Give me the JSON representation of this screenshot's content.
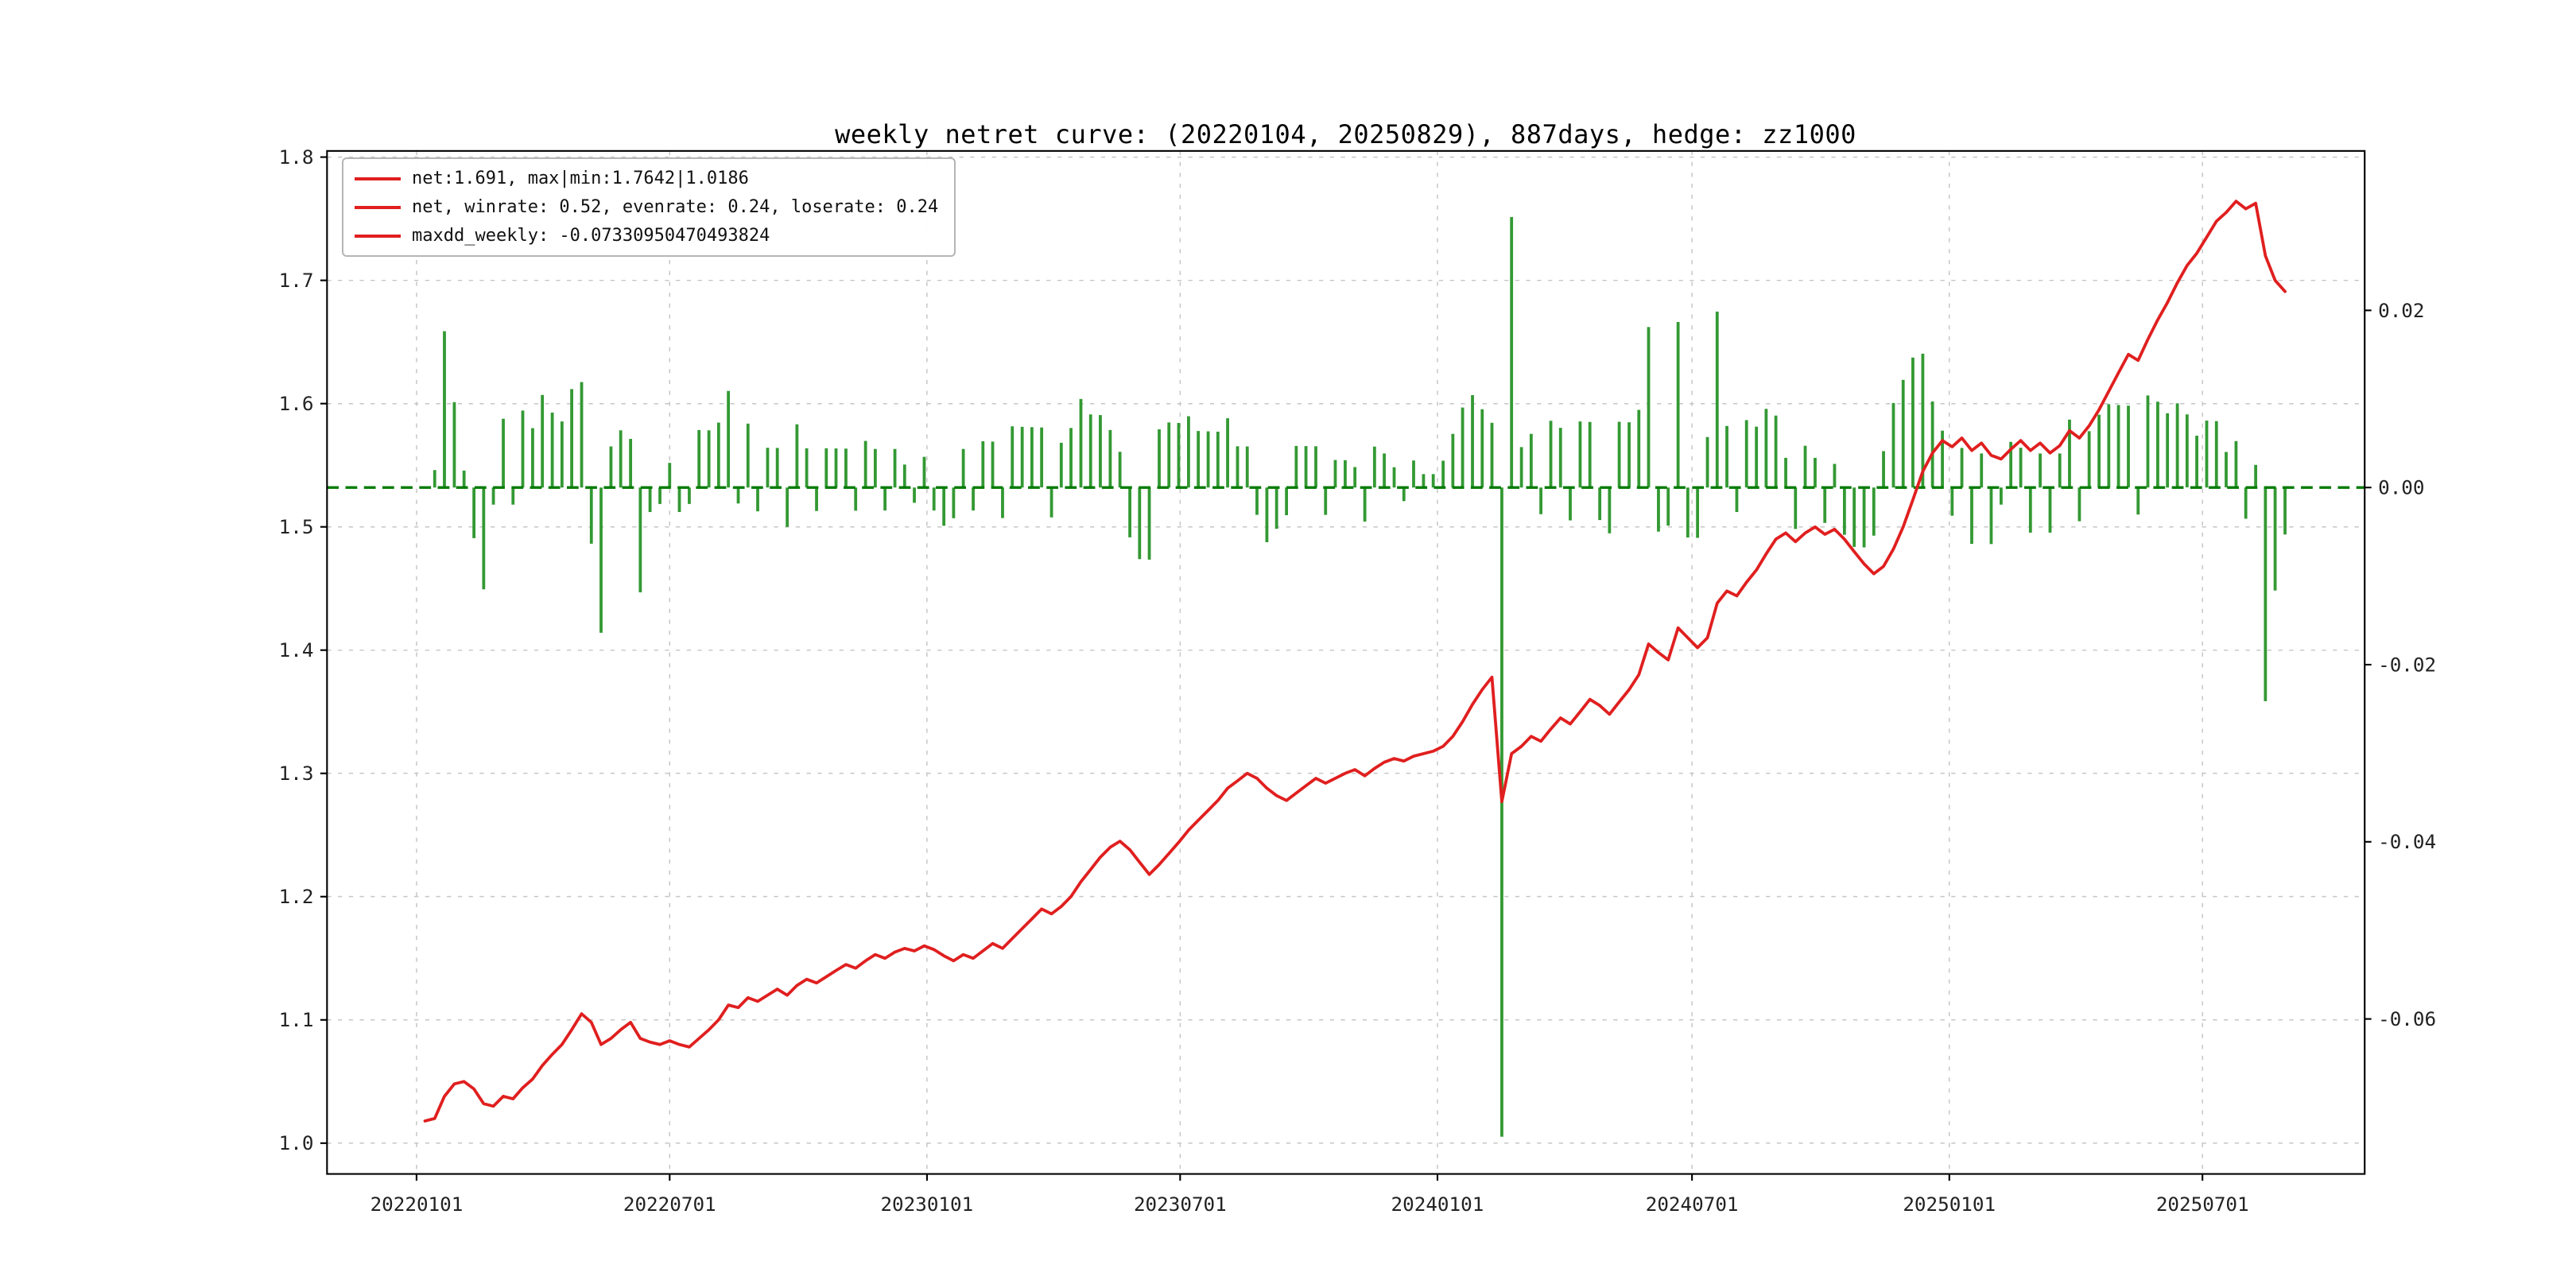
{
  "page": {
    "background": "#ffffff"
  },
  "chart_data": {
    "type": "line+bar",
    "title": "weekly netret curve: (20220104, 20250829), 887days, hedge: zz1000",
    "legend": [
      "net:1.691, max|min:1.7642|1.0186",
      "net, winrate: 0.52, evenrate: 0.24, loserate: 0.24",
      "maxdd_weekly: -0.07330950470493824"
    ],
    "line_color": "#e01f1f",
    "bar_color": "#339933",
    "zero_line_color": "#007a00",
    "grid_on": true,
    "legend_position": "upper left",
    "left_ylim": [
      0.975,
      1.805
    ],
    "right_ylim": [
      -0.0775,
      0.038
    ],
    "x_domain_days": [
      -64,
      1393
    ],
    "left_ticks": [
      {
        "label": "1.0",
        "v": 1.0
      },
      {
        "label": "1.1",
        "v": 1.1
      },
      {
        "label": "1.2",
        "v": 1.2
      },
      {
        "label": "1.3",
        "v": 1.3
      },
      {
        "label": "1.4",
        "v": 1.4
      },
      {
        "label": "1.5",
        "v": 1.5
      },
      {
        "label": "1.6",
        "v": 1.6
      },
      {
        "label": "1.7",
        "v": 1.7
      },
      {
        "label": "1.8",
        "v": 1.8
      }
    ],
    "right_ticks": [
      {
        "label": "0.02",
        "v": 0.02
      },
      {
        "label": "0.00",
        "v": 0.0
      },
      {
        "label": "-0.02",
        "v": -0.02
      },
      {
        "label": "-0.04",
        "v": -0.04
      },
      {
        "label": "-0.06",
        "v": -0.06
      }
    ],
    "x_ticks": [
      {
        "label": "20220101",
        "day": 0
      },
      {
        "label": "20220701",
        "day": 181
      },
      {
        "label": "20230101",
        "day": 365
      },
      {
        "label": "20230701",
        "day": 546
      },
      {
        "label": "20240101",
        "day": 730
      },
      {
        "label": "20240701",
        "day": 912
      },
      {
        "label": "20250101",
        "day": 1096
      },
      {
        "label": "20250701",
        "day": 1277
      }
    ],
    "start_date": "20220107",
    "end_date": "20250829",
    "start_day_offset": 6,
    "week_step_days": 7,
    "series": [
      {
        "name": "net",
        "type": "line",
        "axis": "left",
        "color": "#e01f1f"
      },
      {
        "name": "weekly_return",
        "type": "bar",
        "axis": "right",
        "color": "#339933",
        "note": "week-over-week pct change of net"
      }
    ],
    "net": [
      1.018,
      1.02,
      1.038,
      1.048,
      1.05,
      1.044,
      1.032,
      1.03,
      1.038,
      1.036,
      1.045,
      1.052,
      1.063,
      1.072,
      1.08,
      1.092,
      1.105,
      1.098,
      1.08,
      1.085,
      1.092,
      1.098,
      1.085,
      1.082,
      1.08,
      1.083,
      1.08,
      1.078,
      1.085,
      1.092,
      1.1,
      1.112,
      1.11,
      1.118,
      1.115,
      1.12,
      1.125,
      1.12,
      1.128,
      1.133,
      1.13,
      1.135,
      1.14,
      1.145,
      1.142,
      1.148,
      1.153,
      1.15,
      1.155,
      1.158,
      1.156,
      1.16,
      1.157,
      1.152,
      1.148,
      1.153,
      1.15,
      1.156,
      1.162,
      1.158,
      1.166,
      1.174,
      1.182,
      1.19,
      1.186,
      1.192,
      1.2,
      1.212,
      1.222,
      1.232,
      1.24,
      1.245,
      1.238,
      1.228,
      1.218,
      1.226,
      1.235,
      1.244,
      1.254,
      1.262,
      1.27,
      1.278,
      1.288,
      1.294,
      1.3,
      1.296,
      1.288,
      1.282,
      1.278,
      1.284,
      1.29,
      1.296,
      1.292,
      1.296,
      1.3,
      1.303,
      1.298,
      1.304,
      1.309,
      1.312,
      1.31,
      1.314,
      1.316,
      1.318,
      1.322,
      1.33,
      1.342,
      1.356,
      1.368,
      1.378,
      1.277,
      1.316,
      1.322,
      1.33,
      1.326,
      1.336,
      1.345,
      1.34,
      1.35,
      1.36,
      1.355,
      1.348,
      1.358,
      1.368,
      1.38,
      1.405,
      1.398,
      1.392,
      1.418,
      1.41,
      1.402,
      1.41,
      1.438,
      1.448,
      1.444,
      1.455,
      1.465,
      1.478,
      1.49,
      1.495,
      1.488,
      1.495,
      1.5,
      1.494,
      1.498,
      1.49,
      1.48,
      1.47,
      1.462,
      1.468,
      1.482,
      1.5,
      1.522,
      1.545,
      1.56,
      1.57,
      1.565,
      1.572,
      1.562,
      1.568,
      1.558,
      1.555,
      1.563,
      1.57,
      1.562,
      1.568,
      1.56,
      1.566,
      1.578,
      1.572,
      1.582,
      1.595,
      1.61,
      1.625,
      1.64,
      1.635,
      1.652,
      1.668,
      1.682,
      1.698,
      1.712,
      1.722,
      1.735,
      1.748,
      1.755,
      1.7642,
      1.758,
      1.7625,
      1.72,
      1.7,
      1.691
    ]
  }
}
